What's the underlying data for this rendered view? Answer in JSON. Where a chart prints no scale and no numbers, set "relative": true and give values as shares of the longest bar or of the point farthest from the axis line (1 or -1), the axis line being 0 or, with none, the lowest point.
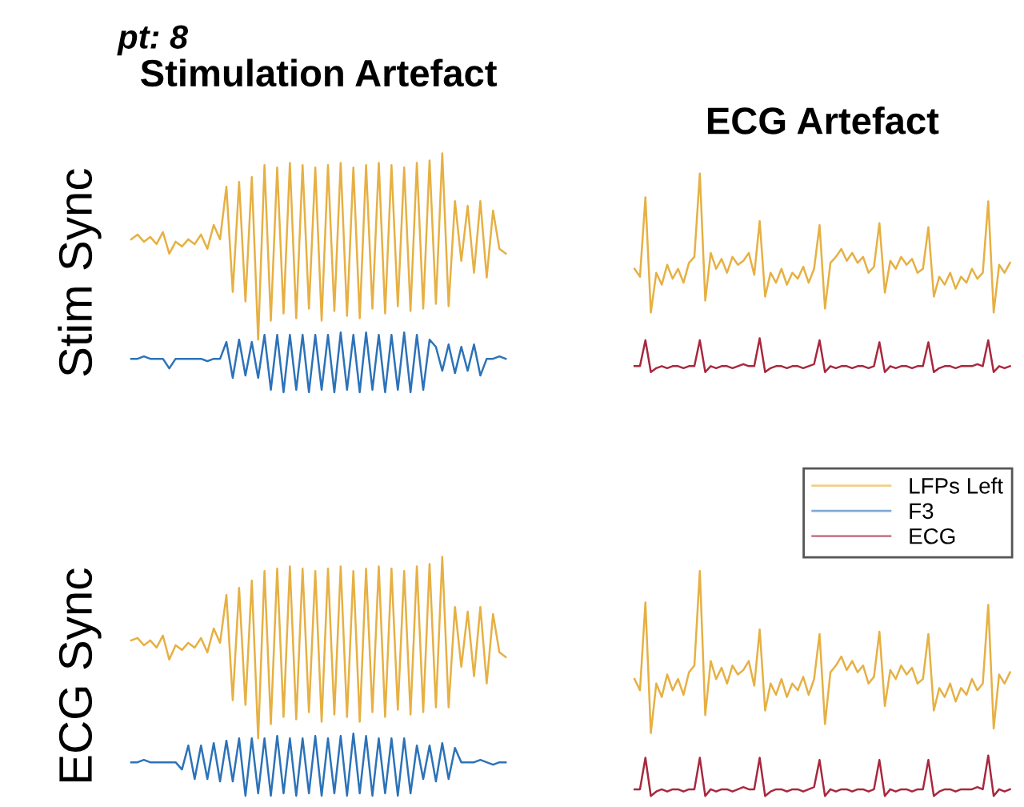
{
  "chart_data": [
    {
      "type": "line",
      "relative": true,
      "title": "Stimulation Artefact",
      "ylabel": "Stim Sync",
      "annotations": [
        "pt: 8"
      ],
      "legend": "bottom right",
      "tick_labels": false,
      "categories": [
        null,
        null,
        null,
        null,
        null,
        null,
        null,
        null,
        null,
        null,
        null,
        null,
        null,
        null,
        null,
        null,
        null,
        null,
        null,
        null,
        null,
        null,
        null,
        null,
        null,
        null,
        null,
        null,
        null,
        null,
        null,
        null,
        null,
        null,
        null,
        null,
        null,
        null,
        null,
        null,
        null,
        null,
        null,
        null,
        null,
        null,
        null,
        null,
        null,
        null,
        null,
        null,
        null,
        null,
        null,
        null,
        null,
        null,
        null,
        null
      ],
      "series": [
        {
          "name": "LFPs Left",
          "color": "#e6b043",
          "values": [
            0.64,
            0.66,
            0.63,
            0.65,
            0.62,
            0.67,
            0.58,
            0.63,
            0.61,
            0.64,
            0.62,
            0.66,
            0.6,
            0.7,
            0.64,
            0.86,
            0.42,
            0.88,
            0.38,
            0.9,
            0.22,
            0.95,
            0.3,
            0.94,
            0.33,
            0.96,
            0.31,
            0.95,
            0.35,
            0.94,
            0.3,
            0.95,
            0.34,
            0.96,
            0.32,
            0.94,
            0.31,
            0.95,
            0.35,
            0.96,
            0.33,
            0.95,
            0.36,
            0.94,
            0.34,
            0.96,
            0.35,
            0.97,
            0.37,
            1.0,
            0.36,
            0.8,
            0.55,
            0.78,
            0.5,
            0.8,
            0.48,
            0.76,
            0.6,
            0.58
          ]
        },
        {
          "name": "F3",
          "color": "#2c72b8",
          "values": [
            0.14,
            0.14,
            0.15,
            0.14,
            0.14,
            0.14,
            0.1,
            0.14,
            0.14,
            0.14,
            0.14,
            0.14,
            0.13,
            0.14,
            0.14,
            0.21,
            0.06,
            0.22,
            0.07,
            0.21,
            0.06,
            0.24,
            0.01,
            0.24,
            0.0,
            0.24,
            0.01,
            0.24,
            0.0,
            0.24,
            0.01,
            0.24,
            0.0,
            0.25,
            0.01,
            0.24,
            0.0,
            0.25,
            0.01,
            0.24,
            0.0,
            0.24,
            0.01,
            0.25,
            0.0,
            0.24,
            0.01,
            0.22,
            0.19,
            0.09,
            0.2,
            0.08,
            0.19,
            0.09,
            0.2,
            0.07,
            0.14,
            0.14,
            0.15,
            0.14
          ]
        }
      ]
    },
    {
      "type": "line",
      "relative": true,
      "title": "ECG Artefact",
      "legend": "bottom right",
      "tick_labels": false,
      "categories": [
        null,
        null,
        null,
        null,
        null,
        null,
        null,
        null,
        null,
        null,
        null,
        null,
        null,
        null,
        null,
        null,
        null,
        null,
        null,
        null,
        null,
        null,
        null,
        null,
        null,
        null,
        null,
        null,
        null,
        null,
        null,
        null,
        null,
        null,
        null,
        null,
        null,
        null,
        null,
        null,
        null,
        null,
        null,
        null,
        null,
        null,
        null,
        null,
        null,
        null,
        null,
        null,
        null,
        null,
        null,
        null,
        null,
        null,
        null,
        null,
        null,
        null,
        null,
        null,
        null,
        null,
        null,
        null,
        null,
        null
      ],
      "series": [
        {
          "name": "LFPs Left",
          "color": "#e6b043",
          "values": [
            0.52,
            0.48,
            0.88,
            0.3,
            0.5,
            0.44,
            0.54,
            0.47,
            0.52,
            0.45,
            0.55,
            0.58,
            1.0,
            0.36,
            0.6,
            0.52,
            0.57,
            0.5,
            0.58,
            0.54,
            0.56,
            0.6,
            0.49,
            0.76,
            0.38,
            0.5,
            0.45,
            0.52,
            0.44,
            0.5,
            0.47,
            0.53,
            0.45,
            0.52,
            0.74,
            0.32,
            0.55,
            0.58,
            0.62,
            0.56,
            0.6,
            0.55,
            0.58,
            0.5,
            0.53,
            0.75,
            0.4,
            0.56,
            0.52,
            0.58,
            0.54,
            0.57,
            0.5,
            0.52,
            0.73,
            0.38,
            0.48,
            0.44,
            0.5,
            0.42,
            0.48,
            0.45,
            0.52,
            0.47,
            0.5,
            0.86,
            0.3,
            0.54,
            0.5,
            0.55
          ]
        },
        {
          "name": "ECG",
          "color": "#a8283e",
          "values": [
            0.03,
            0.03,
            0.16,
            0.0,
            0.02,
            0.03,
            0.02,
            0.03,
            0.03,
            0.02,
            0.03,
            0.03,
            0.16,
            0.0,
            0.03,
            0.02,
            0.03,
            0.03,
            0.02,
            0.03,
            0.04,
            0.03,
            0.03,
            0.17,
            0.0,
            0.02,
            0.03,
            0.03,
            0.02,
            0.03,
            0.03,
            0.02,
            0.03,
            0.04,
            0.16,
            0.0,
            0.03,
            0.02,
            0.03,
            0.03,
            0.02,
            0.03,
            0.03,
            0.02,
            0.03,
            0.15,
            0.0,
            0.03,
            0.02,
            0.03,
            0.03,
            0.02,
            0.03,
            0.03,
            0.15,
            0.0,
            0.02,
            0.03,
            0.03,
            0.02,
            0.03,
            0.03,
            0.03,
            0.04,
            0.03,
            0.16,
            0.0,
            0.03,
            0.02,
            0.03
          ]
        }
      ]
    },
    {
      "type": "line",
      "relative": true,
      "ylabel": "ECG Sync",
      "legend": "top right",
      "tick_labels": false,
      "categories": [
        null,
        null,
        null,
        null,
        null,
        null,
        null,
        null,
        null,
        null,
        null,
        null,
        null,
        null,
        null,
        null,
        null,
        null,
        null,
        null,
        null,
        null,
        null,
        null,
        null,
        null,
        null,
        null,
        null,
        null,
        null,
        null,
        null,
        null,
        null,
        null,
        null,
        null,
        null,
        null,
        null,
        null,
        null,
        null,
        null,
        null,
        null,
        null,
        null,
        null,
        null,
        null,
        null,
        null,
        null,
        null,
        null,
        null,
        null,
        null
      ],
      "series": [
        {
          "name": "LFPs Left",
          "color": "#e6b043",
          "values": [
            0.65,
            0.66,
            0.63,
            0.65,
            0.62,
            0.67,
            0.57,
            0.63,
            0.61,
            0.64,
            0.62,
            0.66,
            0.6,
            0.7,
            0.64,
            0.84,
            0.4,
            0.87,
            0.38,
            0.9,
            0.24,
            0.94,
            0.3,
            0.95,
            0.33,
            0.96,
            0.32,
            0.95,
            0.35,
            0.94,
            0.31,
            0.95,
            0.34,
            0.96,
            0.33,
            0.94,
            0.31,
            0.95,
            0.35,
            0.96,
            0.33,
            0.95,
            0.36,
            0.94,
            0.34,
            0.96,
            0.35,
            0.97,
            0.37,
            1.0,
            0.37,
            0.79,
            0.54,
            0.77,
            0.5,
            0.79,
            0.47,
            0.76,
            0.6,
            0.58
          ]
        },
        {
          "name": "F3",
          "color": "#2c72b8",
          "values": [
            0.14,
            0.14,
            0.15,
            0.14,
            0.14,
            0.14,
            0.14,
            0.14,
            0.11,
            0.21,
            0.07,
            0.21,
            0.07,
            0.22,
            0.06,
            0.23,
            0.06,
            0.24,
            0.0,
            0.24,
            0.01,
            0.24,
            0.0,
            0.25,
            0.01,
            0.24,
            0.0,
            0.24,
            0.01,
            0.25,
            0.0,
            0.24,
            0.01,
            0.25,
            0.0,
            0.26,
            0.01,
            0.25,
            0.0,
            0.24,
            0.01,
            0.24,
            0.0,
            0.24,
            0.01,
            0.21,
            0.07,
            0.21,
            0.06,
            0.22,
            0.07,
            0.2,
            0.14,
            0.14,
            0.14,
            0.15,
            0.14,
            0.13,
            0.14,
            0.14
          ]
        }
      ]
    },
    {
      "type": "line",
      "relative": true,
      "legend": "top right",
      "tick_labels": false,
      "categories": [
        null,
        null,
        null,
        null,
        null,
        null,
        null,
        null,
        null,
        null,
        null,
        null,
        null,
        null,
        null,
        null,
        null,
        null,
        null,
        null,
        null,
        null,
        null,
        null,
        null,
        null,
        null,
        null,
        null,
        null,
        null,
        null,
        null,
        null,
        null,
        null,
        null,
        null,
        null,
        null,
        null,
        null,
        null,
        null,
        null,
        null,
        null,
        null,
        null,
        null,
        null,
        null,
        null,
        null,
        null,
        null,
        null,
        null,
        null,
        null,
        null,
        null,
        null,
        null,
        null,
        null,
        null,
        null,
        null,
        null
      ],
      "series": [
        {
          "name": "LFPs Left",
          "color": "#e6b043",
          "values": [
            0.52,
            0.47,
            0.86,
            0.28,
            0.5,
            0.44,
            0.54,
            0.47,
            0.52,
            0.45,
            0.55,
            0.58,
            1.0,
            0.36,
            0.6,
            0.52,
            0.57,
            0.5,
            0.58,
            0.54,
            0.56,
            0.6,
            0.49,
            0.74,
            0.38,
            0.5,
            0.45,
            0.52,
            0.44,
            0.5,
            0.47,
            0.53,
            0.45,
            0.52,
            0.72,
            0.32,
            0.55,
            0.58,
            0.62,
            0.56,
            0.6,
            0.55,
            0.58,
            0.5,
            0.53,
            0.73,
            0.4,
            0.56,
            0.52,
            0.58,
            0.54,
            0.57,
            0.5,
            0.52,
            0.72,
            0.38,
            0.48,
            0.44,
            0.5,
            0.42,
            0.48,
            0.45,
            0.52,
            0.47,
            0.5,
            0.85,
            0.3,
            0.54,
            0.5,
            0.55
          ]
        },
        {
          "name": "ECG",
          "color": "#a8283e",
          "values": [
            0.03,
            0.03,
            0.17,
            0.0,
            0.02,
            0.03,
            0.02,
            0.03,
            0.03,
            0.02,
            0.03,
            0.03,
            0.17,
            0.0,
            0.03,
            0.02,
            0.03,
            0.03,
            0.02,
            0.03,
            0.04,
            0.03,
            0.03,
            0.17,
            0.0,
            0.02,
            0.03,
            0.03,
            0.02,
            0.03,
            0.03,
            0.02,
            0.03,
            0.04,
            0.16,
            0.0,
            0.03,
            0.02,
            0.03,
            0.03,
            0.02,
            0.03,
            0.03,
            0.02,
            0.03,
            0.16,
            0.0,
            0.03,
            0.02,
            0.03,
            0.03,
            0.02,
            0.03,
            0.03,
            0.16,
            0.0,
            0.02,
            0.03,
            0.03,
            0.02,
            0.03,
            0.03,
            0.03,
            0.04,
            0.03,
            0.18,
            0.0,
            0.03,
            0.02,
            0.03
          ]
        }
      ]
    }
  ]
}
